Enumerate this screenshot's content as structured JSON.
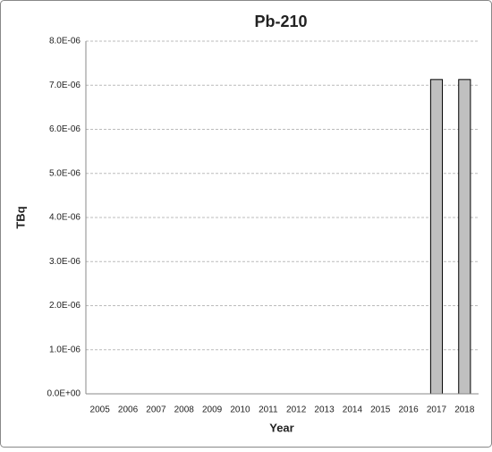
{
  "chart_data": {
    "type": "bar",
    "title": "Pb-210",
    "x_label": "Year",
    "y_label": "TBq",
    "categories": [
      "2005",
      "2006",
      "2007",
      "2008",
      "2009",
      "2010",
      "2011",
      "2012",
      "2013",
      "2014",
      "2015",
      "2016",
      "2017",
      "2018"
    ],
    "values": [
      0,
      0,
      0,
      0,
      0,
      0,
      0,
      0,
      0,
      0,
      0,
      0,
      7.13e-06,
      7.13e-06
    ],
    "color": "#c0c0c0",
    "ylim": [
      0,
      8e-06
    ],
    "yticks": [
      {
        "value": 0,
        "label": "0.0E+00"
      },
      {
        "value": 1e-06,
        "label": "1.0E-06"
      },
      {
        "value": 2e-06,
        "label": "2.0E-06"
      },
      {
        "value": 3e-06,
        "label": "3.0E-06"
      },
      {
        "value": 4e-06,
        "label": "4.0E-06"
      },
      {
        "value": 5e-06,
        "label": "5.0E-06"
      },
      {
        "value": 6e-06,
        "label": "6.0E-06"
      },
      {
        "value": 7e-06,
        "label": "7.0E-06"
      },
      {
        "value": 8e-06,
        "label": "8.0E-06"
      }
    ],
    "grid": true
  }
}
